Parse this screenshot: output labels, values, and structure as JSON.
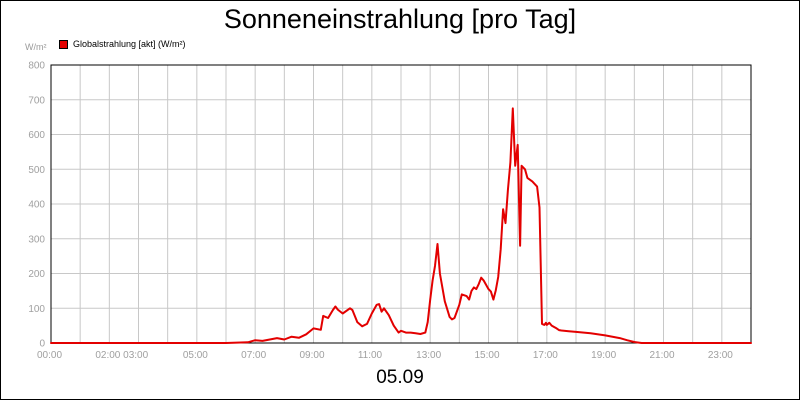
{
  "chart_data": {
    "type": "line",
    "title": "Sonneneinstrahlung [pro Tag]",
    "xlabel": "05.09",
    "ylabel": "W/m²",
    "ylim": [
      0,
      800
    ],
    "xlim": [
      "00:00",
      "24:00"
    ],
    "y_ticks": [
      "0",
      "100",
      "200",
      "300",
      "400",
      "500",
      "600",
      "700",
      "800"
    ],
    "x_ticks": [
      "00:00",
      "02:00 03:00",
      "05:00",
      "07:00",
      "09:00",
      "11:00",
      "13:00",
      "15:00",
      "17:00",
      "19:00",
      "21:00",
      "23:00"
    ],
    "grid": true,
    "legend_position": "top-left",
    "series": [
      {
        "name": "Globalstrahlung [akt] (W/m²)",
        "color": "#e30000",
        "x": [
          "00:00",
          "06:00",
          "06:45",
          "07:00",
          "07:15",
          "07:30",
          "07:45",
          "08:00",
          "08:15",
          "08:30",
          "08:45",
          "09:00",
          "09:15",
          "09:20",
          "09:30",
          "09:40",
          "09:45",
          "09:50",
          "10:00",
          "10:15",
          "10:20",
          "10:30",
          "10:40",
          "10:50",
          "11:00",
          "11:10",
          "11:15",
          "11:20",
          "11:25",
          "11:35",
          "11:45",
          "11:55",
          "12:00",
          "12:10",
          "12:20",
          "12:30",
          "12:40",
          "12:50",
          "12:55",
          "13:00",
          "13:05",
          "13:10",
          "13:15",
          "13:20",
          "13:30",
          "13:40",
          "13:45",
          "13:50",
          "14:00",
          "14:05",
          "14:15",
          "14:20",
          "14:25",
          "14:30",
          "14:35",
          "14:40",
          "14:45",
          "14:50",
          "15:00",
          "15:05",
          "15:10",
          "15:15",
          "15:20",
          "15:25",
          "15:30",
          "15:35",
          "15:40",
          "15:45",
          "15:50",
          "15:55",
          "16:00",
          "16:05",
          "16:08",
          "16:15",
          "16:20",
          "16:30",
          "16:40",
          "16:45",
          "16:50",
          "16:55",
          "16:58",
          "17:00",
          "17:05",
          "17:10",
          "17:15",
          "17:20",
          "17:25",
          "17:30",
          "17:45",
          "18:00",
          "18:30",
          "19:00",
          "19:30",
          "19:45",
          "20:00",
          "20:15",
          "24:00"
        ],
        "values": [
          0,
          0,
          2,
          8,
          6,
          10,
          14,
          10,
          18,
          15,
          25,
          42,
          38,
          78,
          72,
          95,
          105,
          96,
          85,
          100,
          95,
          60,
          48,
          55,
          85,
          110,
          112,
          90,
          100,
          80,
          50,
          30,
          35,
          30,
          30,
          28,
          26,
          30,
          60,
          125,
          180,
          222,
          285,
          200,
          120,
          75,
          68,
          72,
          110,
          140,
          135,
          125,
          150,
          160,
          155,
          170,
          188,
          180,
          155,
          148,
          125,
          152,
          190,
          270,
          385,
          345,
          440,
          520,
          675,
          510,
          570,
          280,
          510,
          500,
          475,
          465,
          450,
          390,
          55,
          52,
          58,
          52,
          58,
          50,
          46,
          42,
          37,
          36,
          34,
          32,
          28,
          22,
          14,
          8,
          3,
          0,
          0
        ]
      }
    ]
  }
}
